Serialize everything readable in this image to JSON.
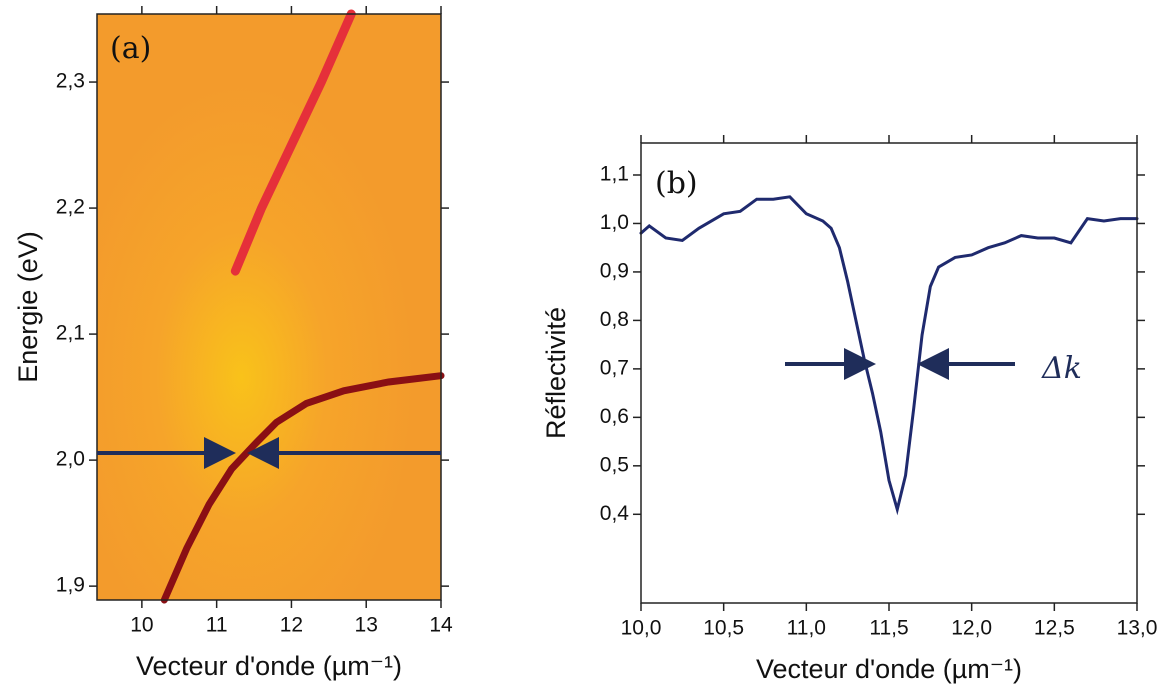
{
  "chart_data": [
    {
      "type": "line",
      "panel": "(a)",
      "xlabel": "Vecteur d'onde (µm⁻¹)",
      "ylabel": "Energie (eV)",
      "xlim": [
        9.4,
        14
      ],
      "ylim": [
        1.889,
        2.354
      ],
      "xticks": [
        10,
        11,
        12,
        13,
        14
      ],
      "yticks": [
        {
          "value": 1.9,
          "label": "1,9"
        },
        {
          "value": 2.0,
          "label": "2,0"
        },
        {
          "value": 2.1,
          "label": "2,1"
        },
        {
          "value": 2.2,
          "label": "2,2"
        },
        {
          "value": 2.3,
          "label": "2,3"
        }
      ],
      "series": [
        {
          "color": "#8a0f14",
          "x": [
            10.3,
            10.6,
            10.9,
            11.2,
            11.5,
            11.8,
            12.2,
            12.7,
            13.3,
            14
          ],
          "values": [
            1.889,
            1.93,
            1.965,
            1.993,
            2.012,
            2.03,
            2.045,
            2.055,
            2.062,
            2.067
          ]
        },
        {
          "color": "#e5303a",
          "x": [
            11.25,
            11.6,
            12.0,
            12.4,
            12.8
          ],
          "values": [
            2.15,
            2.2,
            2.25,
            2.3,
            2.354
          ]
        }
      ]
    },
    {
      "type": "line",
      "panel": "(b)",
      "xlabel": "Vecteur d'onde (µm⁻¹)",
      "ylabel": "Réflectivité",
      "annotation": "Δk",
      "xlim": [
        10,
        13
      ],
      "ylim": [
        0.217,
        1.166
      ],
      "xticks": [
        {
          "value": 10,
          "label": "10,0"
        },
        {
          "value": 10.5,
          "label": "10,5"
        },
        {
          "value": 11,
          "label": "11,0"
        },
        {
          "value": 11.5,
          "label": "11,5"
        },
        {
          "value": 12,
          "label": "12,0"
        },
        {
          "value": 12.5,
          "label": "12,5"
        },
        {
          "value": 13,
          "label": "13,0"
        }
      ],
      "yticks": [
        {
          "value": 0.4,
          "label": "0,4"
        },
        {
          "value": 0.5,
          "label": "0,5"
        },
        {
          "value": 0.6,
          "label": "0,6"
        },
        {
          "value": 0.7,
          "label": "0,7"
        },
        {
          "value": 0.8,
          "label": "0,8"
        },
        {
          "value": 0.9,
          "label": "0,9"
        },
        {
          "value": 1.0,
          "label": "1,0"
        },
        {
          "value": 1.1,
          "label": "1,1"
        }
      ],
      "series": [
        {
          "color": "#1f2a6e",
          "x": [
            10.0,
            10.05,
            10.15,
            10.25,
            10.35,
            10.5,
            10.6,
            10.7,
            10.8,
            10.9,
            11.0,
            11.1,
            11.15,
            11.2,
            11.25,
            11.3,
            11.35,
            11.4,
            11.45,
            11.5,
            11.55,
            11.6,
            11.65,
            11.7,
            11.75,
            11.8,
            11.9,
            12.0,
            12.1,
            12.2,
            12.3,
            12.4,
            12.5,
            12.6,
            12.7,
            12.8,
            12.9,
            13.0
          ],
          "values": [
            0.98,
            0.995,
            0.97,
            0.965,
            0.99,
            1.02,
            1.025,
            1.05,
            1.05,
            1.055,
            1.02,
            1.005,
            0.99,
            0.95,
            0.88,
            0.8,
            0.72,
            0.65,
            0.57,
            0.47,
            0.41,
            0.48,
            0.62,
            0.77,
            0.87,
            0.91,
            0.93,
            0.935,
            0.95,
            0.96,
            0.975,
            0.97,
            0.97,
            0.96,
            1.01,
            1.005,
            1.01,
            1.01
          ]
        }
      ]
    }
  ]
}
